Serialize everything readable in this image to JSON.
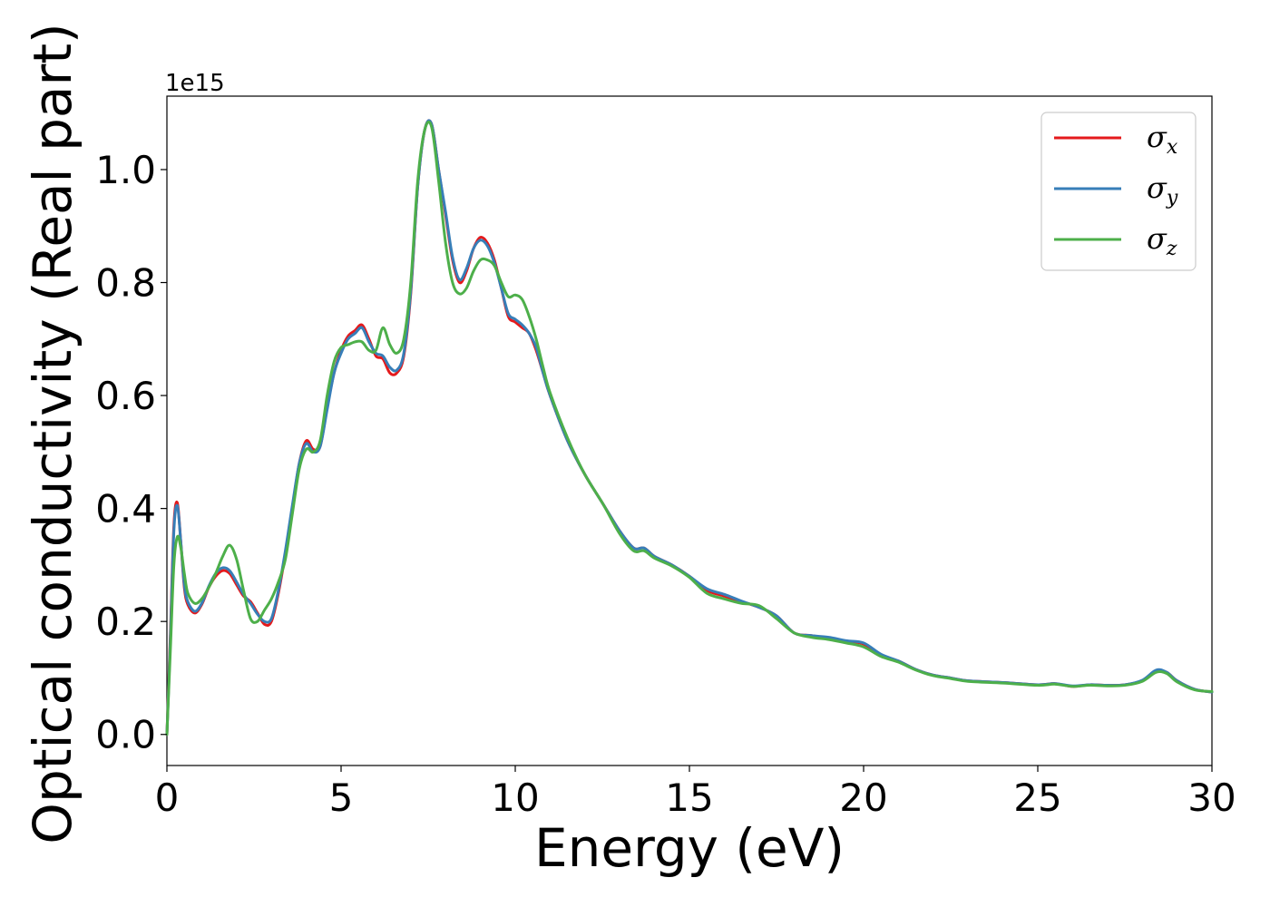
{
  "chart_data": {
    "type": "line",
    "xlabel": "Energy (eV)",
    "ylabel": "Optical conductivity (Real part)",
    "y_offset_label": "1e15",
    "xlim": [
      0,
      30
    ],
    "ylim": [
      -0.055,
      1.13
    ],
    "x_ticks": [
      0,
      5,
      10,
      15,
      20,
      25,
      30
    ],
    "x_tick_labels": [
      "0",
      "5",
      "10",
      "15",
      "20",
      "25",
      "30"
    ],
    "y_ticks": [
      0.0,
      0.2,
      0.4,
      0.6,
      0.8,
      1.0
    ],
    "y_tick_labels": [
      "0.0",
      "0.2",
      "0.4",
      "0.6",
      "0.8",
      "1.0"
    ],
    "grid": false,
    "legend_position": "top-right",
    "series": [
      {
        "name": "σ",
        "subscript": "x",
        "color": "#e41a1c",
        "x": [
          0.0,
          0.1,
          0.2,
          0.3,
          0.4,
          0.5,
          0.6,
          0.8,
          1.0,
          1.2,
          1.4,
          1.6,
          1.8,
          2.0,
          2.2,
          2.4,
          2.6,
          2.8,
          3.0,
          3.2,
          3.4,
          3.6,
          3.8,
          4.0,
          4.2,
          4.4,
          4.6,
          4.8,
          5.0,
          5.2,
          5.4,
          5.6,
          5.8,
          6.0,
          6.2,
          6.4,
          6.6,
          6.8,
          7.0,
          7.2,
          7.4,
          7.6,
          7.8,
          8.0,
          8.2,
          8.4,
          8.6,
          8.8,
          9.0,
          9.2,
          9.4,
          9.6,
          9.8,
          10.0,
          10.2,
          10.4,
          10.6,
          10.8,
          11.0,
          11.5,
          12.0,
          12.5,
          13.0,
          13.4,
          13.7,
          14.0,
          14.5,
          15.0,
          15.5,
          16.0,
          16.5,
          17.0,
          17.5,
          18.0,
          18.5,
          19.0,
          19.5,
          20.0,
          20.5,
          21.0,
          21.5,
          22.0,
          22.5,
          23.0,
          24.0,
          25.0,
          25.5,
          26.0,
          26.5,
          27.0,
          27.5,
          28.0,
          28.4,
          28.7,
          29.0,
          29.5,
          30.0
        ],
        "values": [
          0.0,
          0.18,
          0.37,
          0.41,
          0.34,
          0.26,
          0.23,
          0.215,
          0.23,
          0.26,
          0.28,
          0.29,
          0.285,
          0.265,
          0.245,
          0.235,
          0.215,
          0.195,
          0.2,
          0.25,
          0.32,
          0.4,
          0.48,
          0.52,
          0.505,
          0.51,
          0.58,
          0.64,
          0.68,
          0.705,
          0.715,
          0.725,
          0.7,
          0.67,
          0.665,
          0.64,
          0.64,
          0.67,
          0.78,
          0.97,
          1.07,
          1.08,
          1.0,
          0.92,
          0.84,
          0.8,
          0.82,
          0.86,
          0.88,
          0.87,
          0.84,
          0.79,
          0.74,
          0.73,
          0.72,
          0.71,
          0.68,
          0.64,
          0.6,
          0.52,
          0.46,
          0.41,
          0.36,
          0.33,
          0.33,
          0.315,
          0.3,
          0.28,
          0.255,
          0.245,
          0.235,
          0.225,
          0.21,
          0.18,
          0.175,
          0.17,
          0.165,
          0.16,
          0.14,
          0.13,
          0.115,
          0.105,
          0.1,
          0.095,
          0.092,
          0.088,
          0.09,
          0.085,
          0.088,
          0.087,
          0.088,
          0.095,
          0.112,
          0.11,
          0.095,
          0.08,
          0.075
        ]
      },
      {
        "name": "σ",
        "subscript": "y",
        "color": "#377eb8",
        "x": [
          0.0,
          0.1,
          0.2,
          0.3,
          0.4,
          0.5,
          0.6,
          0.8,
          1.0,
          1.2,
          1.4,
          1.6,
          1.8,
          2.0,
          2.2,
          2.4,
          2.6,
          2.8,
          3.0,
          3.2,
          3.4,
          3.6,
          3.8,
          4.0,
          4.2,
          4.4,
          4.6,
          4.8,
          5.0,
          5.2,
          5.4,
          5.6,
          5.8,
          6.0,
          6.2,
          6.4,
          6.6,
          6.8,
          7.0,
          7.2,
          7.4,
          7.6,
          7.8,
          8.0,
          8.2,
          8.4,
          8.6,
          8.8,
          9.0,
          9.2,
          9.4,
          9.6,
          9.8,
          10.0,
          10.2,
          10.4,
          10.6,
          10.8,
          11.0,
          11.5,
          12.0,
          12.5,
          13.0,
          13.4,
          13.7,
          14.0,
          14.5,
          15.0,
          15.5,
          16.0,
          16.5,
          17.0,
          17.5,
          18.0,
          18.5,
          19.0,
          19.5,
          20.0,
          20.5,
          21.0,
          21.5,
          22.0,
          22.5,
          23.0,
          24.0,
          25.0,
          25.5,
          26.0,
          26.5,
          27.0,
          27.5,
          28.0,
          28.4,
          28.7,
          29.0,
          29.5,
          30.0
        ],
        "values": [
          0.0,
          0.17,
          0.36,
          0.405,
          0.34,
          0.265,
          0.235,
          0.218,
          0.232,
          0.262,
          0.285,
          0.295,
          0.29,
          0.27,
          0.248,
          0.232,
          0.213,
          0.2,
          0.205,
          0.255,
          0.325,
          0.405,
          0.48,
          0.515,
          0.5,
          0.51,
          0.575,
          0.64,
          0.675,
          0.7,
          0.71,
          0.72,
          0.695,
          0.675,
          0.67,
          0.65,
          0.645,
          0.675,
          0.785,
          0.97,
          1.07,
          1.08,
          1.0,
          0.925,
          0.845,
          0.805,
          0.825,
          0.86,
          0.875,
          0.865,
          0.835,
          0.79,
          0.745,
          0.735,
          0.725,
          0.71,
          0.685,
          0.64,
          0.6,
          0.52,
          0.46,
          0.41,
          0.36,
          0.33,
          0.33,
          0.315,
          0.3,
          0.28,
          0.258,
          0.248,
          0.236,
          0.225,
          0.21,
          0.18,
          0.175,
          0.172,
          0.166,
          0.162,
          0.142,
          0.13,
          0.115,
          0.105,
          0.1,
          0.095,
          0.092,
          0.088,
          0.09,
          0.086,
          0.088,
          0.087,
          0.088,
          0.096,
          0.114,
          0.11,
          0.095,
          0.08,
          0.075
        ]
      },
      {
        "name": "σ",
        "subscript": "z",
        "color": "#4daf4a",
        "x": [
          0.0,
          0.1,
          0.2,
          0.3,
          0.4,
          0.5,
          0.6,
          0.8,
          1.0,
          1.2,
          1.4,
          1.6,
          1.8,
          2.0,
          2.2,
          2.4,
          2.6,
          2.8,
          3.0,
          3.2,
          3.4,
          3.6,
          3.8,
          4.0,
          4.2,
          4.4,
          4.6,
          4.8,
          5.0,
          5.2,
          5.4,
          5.6,
          5.8,
          6.0,
          6.2,
          6.4,
          6.6,
          6.8,
          7.0,
          7.2,
          7.4,
          7.6,
          7.8,
          8.0,
          8.2,
          8.4,
          8.6,
          8.8,
          9.0,
          9.2,
          9.4,
          9.6,
          9.8,
          10.0,
          10.2,
          10.4,
          10.6,
          10.8,
          11.0,
          11.5,
          12.0,
          12.5,
          13.0,
          13.4,
          13.7,
          14.0,
          14.5,
          15.0,
          15.5,
          16.0,
          16.5,
          17.0,
          17.5,
          18.0,
          18.5,
          19.0,
          19.5,
          20.0,
          20.5,
          21.0,
          21.5,
          22.0,
          22.5,
          23.0,
          24.0,
          25.0,
          25.5,
          26.0,
          26.5,
          27.0,
          27.5,
          28.0,
          28.4,
          28.7,
          29.0,
          29.5,
          30.0
        ],
        "values": [
          0.0,
          0.15,
          0.3,
          0.35,
          0.33,
          0.285,
          0.25,
          0.232,
          0.24,
          0.26,
          0.285,
          0.315,
          0.335,
          0.31,
          0.255,
          0.205,
          0.2,
          0.22,
          0.24,
          0.27,
          0.31,
          0.39,
          0.47,
          0.505,
          0.5,
          0.52,
          0.6,
          0.66,
          0.685,
          0.69,
          0.695,
          0.695,
          0.68,
          0.68,
          0.72,
          0.69,
          0.675,
          0.7,
          0.8,
          0.98,
          1.07,
          1.075,
          0.98,
          0.87,
          0.8,
          0.78,
          0.79,
          0.82,
          0.84,
          0.84,
          0.83,
          0.8,
          0.775,
          0.778,
          0.77,
          0.74,
          0.7,
          0.65,
          0.605,
          0.525,
          0.46,
          0.41,
          0.355,
          0.325,
          0.325,
          0.312,
          0.298,
          0.278,
          0.25,
          0.24,
          0.232,
          0.228,
          0.205,
          0.18,
          0.172,
          0.168,
          0.162,
          0.155,
          0.138,
          0.128,
          0.114,
          0.104,
          0.099,
          0.094,
          0.091,
          0.087,
          0.089,
          0.085,
          0.087,
          0.086,
          0.087,
          0.094,
          0.11,
          0.108,
          0.093,
          0.079,
          0.076
        ]
      }
    ]
  }
}
